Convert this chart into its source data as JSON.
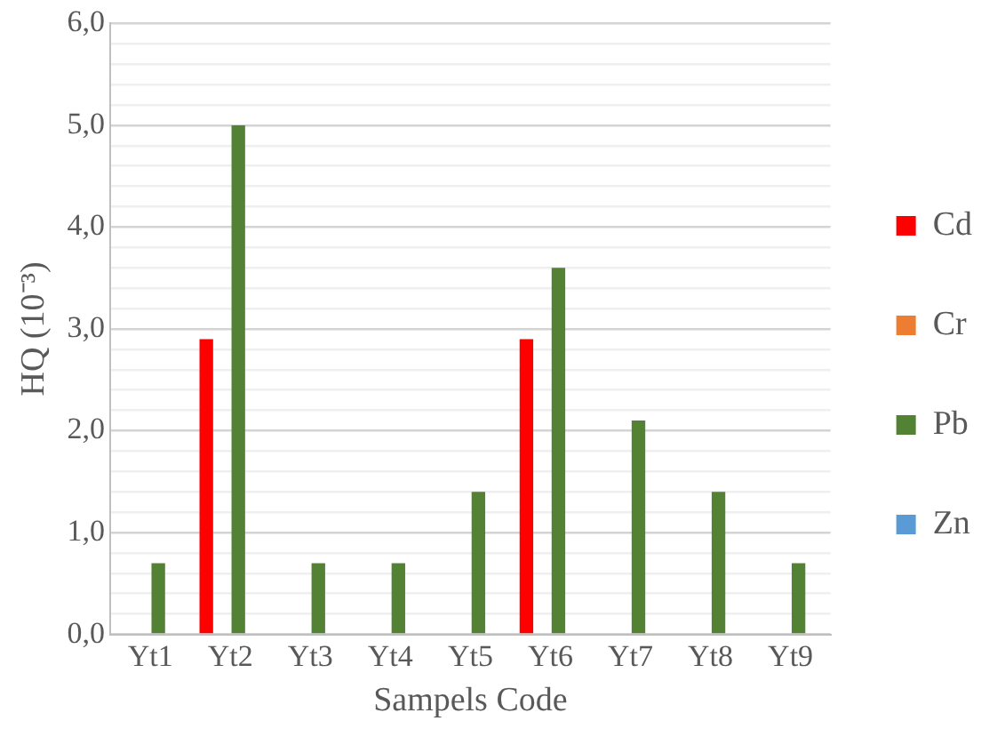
{
  "chart_data": {
    "type": "bar",
    "xlabel": "Sampels Code",
    "ylabel": "HQ (10⁻³)",
    "categories": [
      "Yt1",
      "Yt2",
      "Yt3",
      "Yt4",
      "Yt5",
      "Yt6",
      "Yt7",
      "Yt8",
      "Yt9"
    ],
    "series": [
      {
        "name": "Cd",
        "color": "#ff0000",
        "values": [
          0,
          2.9,
          0,
          0,
          0,
          2.9,
          0,
          0,
          0
        ]
      },
      {
        "name": "Cr",
        "color": "#ed7d31",
        "values": [
          0,
          0,
          0,
          0,
          0,
          0,
          0,
          0,
          0
        ]
      },
      {
        "name": "Pb",
        "color": "#548235",
        "values": [
          0.7,
          5.0,
          0.7,
          0.7,
          1.4,
          3.6,
          2.1,
          1.4,
          0.7
        ]
      },
      {
        "name": "Zn",
        "color": "#5b9bd5",
        "values": [
          0,
          0,
          0,
          0,
          0,
          0,
          0,
          0,
          0
        ]
      }
    ],
    "ylim": [
      0,
      6
    ],
    "yticks": [
      {
        "value": 0,
        "label": "0,0"
      },
      {
        "value": 0.2,
        "label": null
      },
      {
        "value": 0.4,
        "label": null
      },
      {
        "value": 0.6,
        "label": null
      },
      {
        "value": 0.8,
        "label": null
      },
      {
        "value": 1,
        "label": "1,0"
      },
      {
        "value": 1.2,
        "label": null
      },
      {
        "value": 1.4,
        "label": null
      },
      {
        "value": 1.6,
        "label": null
      },
      {
        "value": 1.8,
        "label": null
      },
      {
        "value": 2,
        "label": "2,0"
      },
      {
        "value": 2.2,
        "label": null
      },
      {
        "value": 2.4,
        "label": null
      },
      {
        "value": 2.6,
        "label": null
      },
      {
        "value": 2.8,
        "label": null
      },
      {
        "value": 3,
        "label": "3,0"
      },
      {
        "value": 3.2,
        "label": null
      },
      {
        "value": 3.4,
        "label": null
      },
      {
        "value": 3.6,
        "label": null
      },
      {
        "value": 3.8,
        "label": null
      },
      {
        "value": 4,
        "label": "4,0"
      },
      {
        "value": 4.2,
        "label": null
      },
      {
        "value": 4.4,
        "label": null
      },
      {
        "value": 4.6,
        "label": null
      },
      {
        "value": 4.8,
        "label": null
      },
      {
        "value": 5,
        "label": "5,0"
      },
      {
        "value": 5.2,
        "label": null
      },
      {
        "value": 5.4,
        "label": null
      },
      {
        "value": 5.6,
        "label": null
      },
      {
        "value": 5.8,
        "label": null
      },
      {
        "value": 6,
        "label": "6,0"
      }
    ],
    "grid": "y",
    "legend": "right"
  }
}
